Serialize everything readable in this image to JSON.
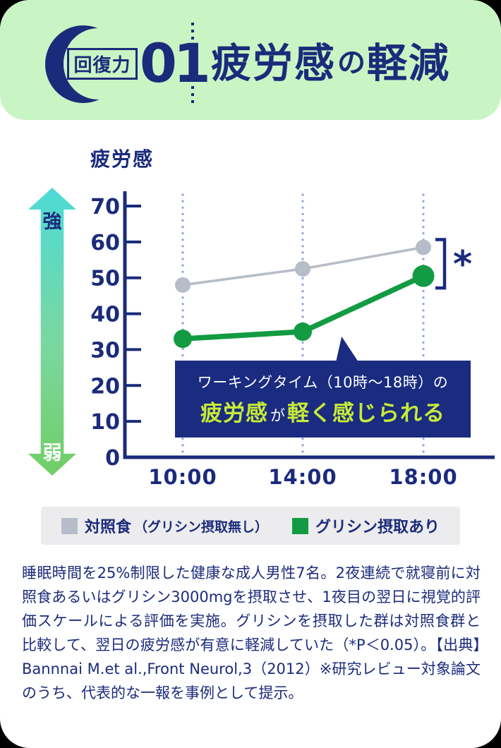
{
  "header": {
    "badge_label": "回復力",
    "badge_number": "01",
    "title_parts": [
      "疲労感",
      "の",
      "軽減"
    ]
  },
  "chart": {
    "title": "疲労感",
    "strong_label": "強",
    "weak_label": "弱",
    "significance_label": "*"
  },
  "chart_data": {
    "type": "line",
    "title": "疲労感",
    "categories": [
      "10:00",
      "14:00",
      "18:00"
    ],
    "series": [
      {
        "name": "対照食",
        "name_sub": "（グリシン摂取無し）",
        "color": "#b6bcc8",
        "values": [
          48,
          52.5,
          58.5
        ],
        "line_width": 3.5,
        "point_radii": [
          11,
          11,
          11
        ]
      },
      {
        "name": "グリシン摂取あり",
        "name_sub": "",
        "color": "#129b43",
        "values": [
          33,
          35,
          50.5
        ],
        "line_width": 7.5,
        "point_radii": [
          13,
          13,
          15.5
        ]
      }
    ],
    "ylim": [
      0,
      70
    ],
    "yticks": [
      0,
      10,
      20,
      30,
      40,
      50,
      60,
      70
    ],
    "ylabel": "疲労感",
    "xlabel": "",
    "grid": "dotted-vertical-at-categories",
    "legend_position": "bottom",
    "annotation": "* significant difference between series at 18:00 (P<0.05)"
  },
  "callout": {
    "line1": "ワーキングタイム（10時～18時）の",
    "line2_highlight1": "疲労感",
    "line2_normal": "が",
    "line2_highlight2": "軽く感じられる"
  },
  "footnote": {
    "text": "睡眠時間を25%制限した健康な成人男性7名。2夜連続で就寝前に対照食あるいはグリシン3000mgを摂取させ、1夜目の翌日に視覚的評価スケールによる評価を実施。グリシンを摂取した群は対照食群と比較して、翌日の疲労感が有意に軽減していた（*P＜0.05）。【出典】Bannnai M.et al.,Front Neurol,3（2012）※研究レビュー対象論文のうち、代表的な一報を事例として提示。"
  },
  "colors": {
    "navy": "#1b2b7b",
    "callout_bg": "#1a2b80",
    "header_bg": "#c9f5c4",
    "legend_bg": "#ececee",
    "grid_dots": "#8fa6d6",
    "series_gray": "#b6bcc8",
    "series_green": "#129b43",
    "highlight_lime": "#c7eb38",
    "arrow_top": "#4ddbd6",
    "arrow_bottom": "#70ce66"
  }
}
